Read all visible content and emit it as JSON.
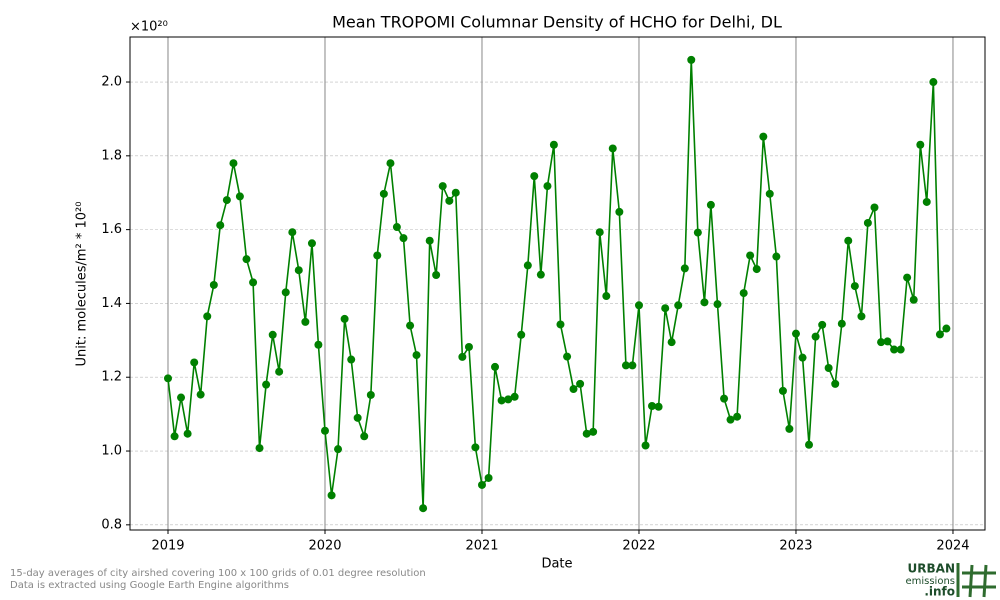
{
  "chart_data": {
    "type": "line",
    "title": "Mean TROPOMI Columnar Density of HCHO for Delhi, DL",
    "x_label": "Date",
    "y_label": "Unit: molecules/m² * 10²⁰",
    "y_offset_label": "×10²⁰",
    "xlim": [
      2018.758,
      2024.204
    ],
    "xticks": [
      2019,
      2020,
      2021,
      2022,
      2023,
      2024
    ],
    "ylim": [
      0.786,
      2.122
    ],
    "yticks": [
      0.8,
      {
        "value": 1,
        "label": "1.0"
      },
      1.2,
      1.4,
      1.6,
      1.8,
      {
        "value": 2,
        "label": "2.0"
      }
    ],
    "grid": true,
    "series": [
      {
        "color": "#008000",
        "x": [
          2019,
          2019.042,
          2019.083,
          2019.125,
          2019.167,
          2019.208,
          2019.25,
          2019.292,
          2019.333,
          2019.375,
          2019.417,
          2019.458,
          2019.5,
          2019.542,
          2019.583,
          2019.625,
          2019.667,
          2019.708,
          2019.75,
          2019.792,
          2019.833,
          2019.875,
          2019.917,
          2019.958,
          2020,
          2020.042,
          2020.083,
          2020.125,
          2020.167,
          2020.208,
          2020.25,
          2020.292,
          2020.333,
          2020.375,
          2020.417,
          2020.458,
          2020.5,
          2020.542,
          2020.583,
          2020.625,
          2020.667,
          2020.708,
          2020.75,
          2020.792,
          2020.833,
          2020.875,
          2020.917,
          2020.958,
          2021,
          2021.042,
          2021.083,
          2021.125,
          2021.167,
          2021.208,
          2021.25,
          2021.292,
          2021.333,
          2021.375,
          2021.417,
          2021.458,
          2021.5,
          2021.542,
          2021.583,
          2021.625,
          2021.667,
          2021.708,
          2021.75,
          2021.792,
          2021.833,
          2021.875,
          2021.917,
          2021.958,
          2022,
          2022.042,
          2022.083,
          2022.125,
          2022.167,
          2022.208,
          2022.25,
          2022.292,
          2022.333,
          2022.375,
          2022.417,
          2022.458,
          2022.5,
          2022.542,
          2022.583,
          2022.625,
          2022.667,
          2022.708,
          2022.75,
          2022.792,
          2022.833,
          2022.875,
          2022.917,
          2022.958,
          2023,
          2023.042,
          2023.083,
          2023.125,
          2023.167,
          2023.208,
          2023.25,
          2023.292,
          2023.333,
          2023.375,
          2023.417,
          2023.458,
          2023.5,
          2023.542,
          2023.583,
          2023.625,
          2023.667,
          2023.708,
          2023.75,
          2023.792,
          2023.833,
          2023.875,
          2023.917,
          2023.958
        ],
        "values": [
          1.197,
          1.04,
          1.145,
          1.047,
          1.24,
          1.153,
          1.365,
          1.45,
          1.612,
          1.68,
          1.78,
          1.69,
          1.52,
          1.457,
          1.008,
          1.18,
          1.315,
          1.215,
          1.43,
          1.593,
          1.49,
          1.35,
          1.563,
          1.288,
          1.055,
          0.88,
          1.005,
          1.358,
          1.248,
          1.09,
          1.04,
          1.152,
          1.53,
          1.697,
          1.78,
          1.607,
          1.577,
          1.34,
          1.26,
          0.845,
          1.57,
          1.477,
          1.718,
          1.678,
          1.7,
          1.255,
          1.282,
          1.01,
          0.908,
          0.927,
          1.228,
          1.137,
          1.14,
          1.147,
          1.315,
          1.503,
          1.745,
          1.478,
          1.718,
          1.83,
          1.343,
          1.256,
          1.168,
          1.182,
          1.047,
          1.052,
          1.593,
          1.42,
          1.82,
          1.648,
          1.232,
          1.232,
          1.395,
          1.015,
          1.122,
          1.12,
          1.387,
          1.295,
          1.395,
          1.495,
          2.06,
          1.592,
          1.403,
          1.667,
          1.398,
          1.142,
          1.085,
          1.093,
          1.428,
          1.53,
          1.493,
          1.852,
          1.697,
          1.527,
          1.163,
          1.06,
          1.318,
          1.253,
          1.017,
          1.31,
          1.342,
          1.225,
          1.182,
          1.345,
          1.57,
          1.447,
          1.365,
          1.618,
          1.66,
          1.295,
          1.297,
          1.275,
          1.275,
          1.47,
          1.41,
          1.83,
          1.675,
          2.0,
          1.316,
          1.332
        ]
      }
    ]
  },
  "footnotes": [
    "15-day averages of city airshed covering 100 x 100 grids of 0.01 degree resolution",
    "Data is extracted using Google Earth Engine algorithms"
  ],
  "logo": {
    "line1": "URBAN",
    "line2": "emissions",
    "line3": ".info"
  }
}
